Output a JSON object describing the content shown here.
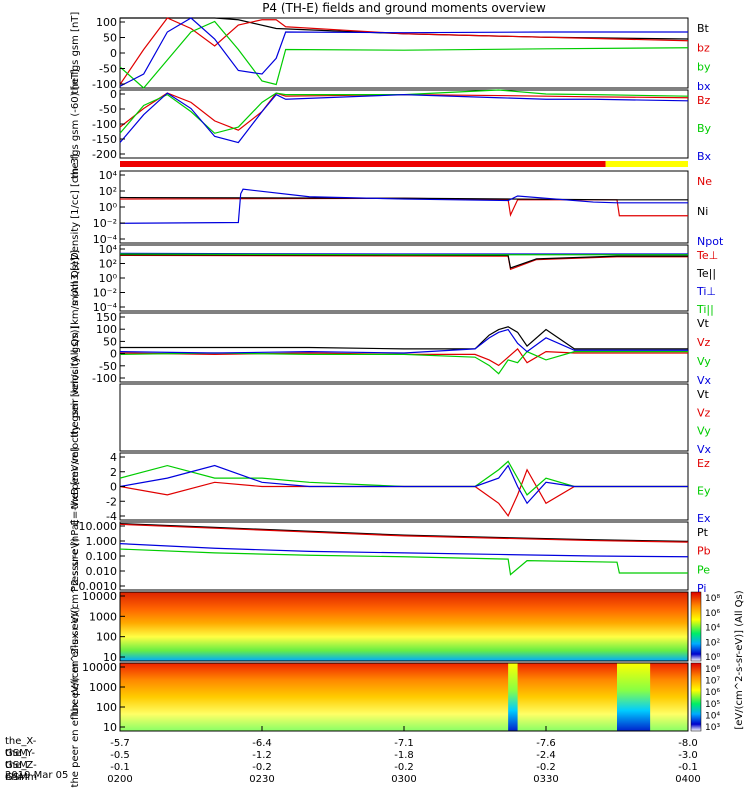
{
  "title": "P4 (TH-E) fields and ground moments overview",
  "date": "2019 Mar 05",
  "colors": {
    "black": "#000000",
    "red": "#e00000",
    "green": "#00cc00",
    "blue": "#0000dd"
  },
  "x_axis": {
    "rows": [
      {
        "label": "the_X-GSM",
        "ticks": [
          "-5.7",
          "-6.4",
          "-7.1",
          "-7.6",
          "-8.0"
        ]
      },
      {
        "label": "the_Y-GSM",
        "ticks": [
          "-0.5",
          "-1.2",
          "-1.8",
          "-2.4",
          "-3.0"
        ]
      },
      {
        "label": "the_Z-GSM",
        "ticks": [
          "-0.1",
          "-0.2",
          "-0.2",
          "-0.2",
          "-0.1"
        ]
      },
      {
        "label": "hhmm",
        "ticks": [
          "0200",
          "0230",
          "0300",
          "0330",
          "0400"
        ]
      }
    ]
  },
  "chart_data": [
    {
      "type": "line",
      "ylabel": "the fgs gsm [nT]",
      "ylim": [
        -100,
        100
      ],
      "yticks": [
        "100",
        "50",
        "0",
        "-50",
        "-100"
      ],
      "legend": [
        "Bt",
        "bz",
        "by",
        "bx"
      ],
      "series": [
        {
          "name": "Bt",
          "color": "black",
          "x": [
            0,
            5,
            10,
            20,
            25,
            33,
            60,
            90,
            120
          ],
          "values": [
            100,
            100,
            100,
            100,
            95,
            70,
            55,
            45,
            40
          ]
        },
        {
          "name": "bz",
          "color": "red",
          "x": [
            0,
            5,
            10,
            15,
            20,
            25,
            30,
            33,
            35,
            60,
            90,
            120
          ],
          "values": [
            -90,
            10,
            100,
            70,
            20,
            80,
            95,
            95,
            75,
            55,
            45,
            35
          ]
        },
        {
          "name": "by",
          "color": "green",
          "x": [
            0,
            5,
            10,
            15,
            20,
            25,
            30,
            33,
            35,
            60,
            90,
            120
          ],
          "values": [
            -40,
            -100,
            -20,
            60,
            90,
            10,
            -80,
            -90,
            10,
            8,
            12,
            15
          ]
        },
        {
          "name": "bx",
          "color": "blue",
          "x": [
            0,
            5,
            10,
            15,
            20,
            25,
            30,
            33,
            35,
            60,
            90,
            120
          ],
          "values": [
            -95,
            -60,
            60,
            100,
            40,
            -50,
            -60,
            -15,
            60,
            58,
            60,
            60
          ]
        }
      ]
    },
    {
      "type": "line",
      "ylabel": "the fgs gsm (-60) [nT]",
      "ylim": [
        -210,
        10
      ],
      "yticks": [
        "0",
        "-50",
        "-100",
        "-150",
        "-200"
      ],
      "legend": [
        "Bz",
        "By",
        "Bx"
      ],
      "series": [
        {
          "name": "Bz",
          "color": "red",
          "x": [
            0,
            5,
            10,
            15,
            20,
            25,
            30,
            33,
            35,
            60,
            80,
            90,
            100,
            120
          ],
          "values": [
            -110,
            -50,
            0,
            -30,
            -90,
            -120,
            -60,
            0,
            -10,
            -5,
            -8,
            -10,
            -12,
            -15
          ]
        },
        {
          "name": "By",
          "color": "green",
          "x": [
            0,
            5,
            10,
            15,
            20,
            25,
            30,
            33,
            35,
            60,
            80,
            90,
            100,
            120
          ],
          "values": [
            -130,
            -40,
            -5,
            -60,
            -130,
            -110,
            -30,
            0,
            -5,
            -5,
            10,
            -3,
            -5,
            -10
          ]
        },
        {
          "name": "Bx",
          "color": "blue",
          "x": [
            0,
            5,
            10,
            15,
            20,
            25,
            30,
            33,
            35,
            60,
            80,
            90,
            100,
            120
          ],
          "values": [
            -160,
            -70,
            0,
            -50,
            -140,
            -160,
            -60,
            -5,
            -20,
            -5,
            -15,
            -20,
            -20,
            -25
          ]
        }
      ]
    },
    {
      "type": "line",
      "ylabel": "Density [1/cc] [cm-3]",
      "yscale": "log",
      "ylim": [
        -5,
        4.5
      ],
      "yticks": [
        "10⁴",
        "10²",
        "10⁰",
        "10⁻²",
        "10⁻⁴"
      ],
      "legend": [
        "Ne",
        "Ni",
        "Npot"
      ],
      "series": [
        {
          "name": "Ne",
          "color": "red",
          "x": [
            0,
            60,
            82,
            82.5,
            84,
            105,
            105.5,
            112,
            120
          ],
          "values": [
            0.8,
            0.9,
            0.7,
            -1.3,
            0.7,
            0.7,
            -1.4,
            -1.4,
            -1.4
          ]
        },
        {
          "name": "Ni",
          "color": "black",
          "x": [
            0,
            60,
            84,
            105,
            106,
            120
          ],
          "values": [
            1.0,
            0.9,
            0.8,
            0.7,
            0.7,
            0.7
          ]
        },
        {
          "name": "Npot",
          "color": "blue",
          "x": [
            0,
            25,
            25.5,
            26,
            40,
            60,
            82,
            84,
            100,
            105,
            120
          ],
          "values": [
            -2.4,
            -2.3,
            1.5,
            2.1,
            1.1,
            0.8,
            0.6,
            1.2,
            0.4,
            0.3,
            0.3
          ]
        }
      ]
    },
    {
      "type": "line",
      "ylabel": "mom3 [eV]",
      "yscale": "log",
      "ylim": [
        -5,
        4.5
      ],
      "yticks": [
        "10⁴",
        "10²",
        "10⁰",
        "10⁻²",
        "10⁻⁴"
      ],
      "legend": [
        "Te⊥",
        "Te||",
        "Ti⊥",
        "Ti||"
      ],
      "series": [
        {
          "name": "Te⊥",
          "color": "red",
          "x": [
            0,
            82,
            82.5,
            88,
            105,
            120
          ],
          "values": [
            3.0,
            2.9,
            1.0,
            2.4,
            2.8,
            2.8
          ]
        },
        {
          "name": "Te||",
          "color": "black",
          "x": [
            0,
            82,
            82.5,
            88,
            105,
            120
          ],
          "values": [
            3.1,
            3.0,
            1.2,
            2.5,
            2.9,
            2.9
          ]
        },
        {
          "name": "Ti⊥",
          "color": "blue",
          "x": [
            0,
            60,
            105,
            120
          ],
          "values": [
            3.3,
            3.2,
            3.2,
            3.2
          ]
        },
        {
          "name": "Ti||",
          "color": "green",
          "x": [
            0,
            60,
            105,
            120
          ],
          "values": [
            3.2,
            3.1,
            3.1,
            3.1
          ]
        }
      ]
    },
    {
      "type": "line",
      "ylabel": "the peir velocity gsm [km/s (All Qs)]",
      "ylim": [
        -100,
        150
      ],
      "yticks": [
        "150",
        "100",
        "50",
        "0",
        "-50",
        "-100"
      ],
      "legend": [
        "Vt",
        "Vz",
        "Vy",
        "Vx"
      ],
      "series": [
        {
          "name": "Vt",
          "color": "black",
          "x": [
            0,
            20,
            40,
            60,
            75,
            78,
            80,
            82,
            84,
            86,
            90,
            96,
            120
          ],
          "values": [
            25,
            25,
            25,
            20,
            20,
            70,
            90,
            100,
            80,
            30,
            90,
            20,
            20
          ]
        },
        {
          "name": "Vz",
          "color": "red",
          "x": [
            0,
            20,
            40,
            60,
            75,
            78,
            80,
            82,
            84,
            86,
            90,
            96,
            120
          ],
          "values": [
            5,
            0,
            5,
            0,
            0,
            -20,
            -40,
            -10,
            20,
            -30,
            10,
            5,
            5
          ]
        },
        {
          "name": "Vy",
          "color": "green",
          "x": [
            0,
            20,
            40,
            60,
            75,
            78,
            80,
            82,
            84,
            86,
            90,
            96,
            120
          ],
          "values": [
            0,
            5,
            0,
            0,
            -10,
            -40,
            -70,
            -20,
            -30,
            10,
            -20,
            10,
            10
          ]
        },
        {
          "name": "Vx",
          "color": "blue",
          "x": [
            0,
            20,
            40,
            60,
            75,
            78,
            80,
            82,
            84,
            86,
            90,
            96,
            120
          ],
          "values": [
            10,
            5,
            10,
            5,
            20,
            60,
            80,
            90,
            40,
            10,
            60,
            15,
            15
          ]
        }
      ]
    },
    {
      "type": "line",
      "ylabel": "the peer velocity gsm [km/s (All Qs)]",
      "ylim": [
        -100,
        150
      ],
      "yticks": [],
      "legend": [
        "Vt",
        "Vz",
        "Vy",
        "Vx"
      ],
      "series": []
    },
    {
      "type": "line",
      "ylabel": "E=-VxB [mV/m]",
      "ylim": [
        -4,
        4
      ],
      "yticks": [
        "4",
        "2",
        "0",
        "-2",
        "-4"
      ],
      "legend": [
        "Ez",
        "Ey",
        "Ex"
      ],
      "series": [
        {
          "name": "Ez",
          "color": "red",
          "x": [
            0,
            10,
            20,
            30,
            40,
            60,
            75,
            80,
            82,
            84,
            86,
            90,
            96,
            120
          ],
          "values": [
            0,
            -1,
            0.5,
            0,
            0,
            0,
            0,
            -2,
            -3.5,
            -1,
            2,
            -2,
            0,
            0
          ]
        },
        {
          "name": "Ey",
          "color": "green",
          "x": [
            0,
            10,
            20,
            30,
            40,
            60,
            75,
            80,
            82,
            84,
            86,
            90,
            96,
            120
          ],
          "values": [
            1,
            2.5,
            1,
            1,
            0.5,
            0,
            0,
            2,
            3,
            1,
            -1,
            1,
            0,
            0
          ]
        },
        {
          "name": "Ex",
          "color": "blue",
          "x": [
            0,
            10,
            20,
            30,
            40,
            60,
            75,
            80,
            82,
            84,
            86,
            90,
            96,
            120
          ],
          "values": [
            0,
            1,
            2.5,
            0.5,
            0,
            0,
            0,
            1,
            2.5,
            0,
            -2,
            0.5,
            0,
            0
          ]
        }
      ]
    },
    {
      "type": "line",
      "ylabel": "Pressure [nPa]",
      "yscale": "log",
      "ylim": [
        -3.1,
        1.3
      ],
      "yticks": [
        "10.000",
        "1.000",
        "0.100",
        "0.010",
        "0.0010"
      ],
      "legend": [
        "Pt",
        "Pb",
        "Pe",
        "Pi"
      ],
      "series": [
        {
          "name": "Pt",
          "color": "black",
          "x": [
            0,
            20,
            40,
            60,
            80,
            100,
            120
          ],
          "values": [
            1.2,
            0.95,
            0.7,
            0.45,
            0.3,
            0.15,
            0.05
          ]
        },
        {
          "name": "Pb",
          "color": "red",
          "x": [
            0,
            20,
            40,
            60,
            80,
            100,
            120
          ],
          "values": [
            1.15,
            0.9,
            0.65,
            0.4,
            0.25,
            0.1,
            0.0
          ]
        },
        {
          "name": "Pe",
          "color": "green",
          "x": [
            0,
            20,
            40,
            60,
            82,
            82.5,
            86,
            105,
            105.5,
            120
          ],
          "values": [
            -0.45,
            -0.7,
            -0.85,
            -0.95,
            -1.1,
            -2.1,
            -1.2,
            -1.3,
            -2.0,
            -2.0
          ]
        },
        {
          "name": "Pi",
          "color": "blue",
          "x": [
            0,
            20,
            40,
            60,
            80,
            100,
            120
          ],
          "values": [
            -0.1,
            -0.4,
            -0.6,
            -0.7,
            -0.8,
            -0.9,
            -0.95
          ]
        }
      ]
    },
    {
      "type": "heatmap",
      "ylabel": "the peir en eflux eV/(cm^2-s-sr-eV)",
      "yscale": "log",
      "yticks": [
        "10000",
        "1000",
        "100",
        "10"
      ],
      "colorbar": {
        "label": "[eV/(cm^2-s-sr-eV)] (All Qs)",
        "ticks": [
          "10⁸",
          "10⁶",
          "10⁴",
          "10²",
          "10⁰"
        ]
      },
      "description_bands": [
        [
          4,
          "red"
        ],
        [
          3,
          "orange"
        ],
        [
          2,
          "yellow"
        ],
        [
          1,
          "green"
        ]
      ]
    },
    {
      "type": "heatmap",
      "ylabel": "the peer en eflux eV/(cm^2-s-sr-eV)",
      "yscale": "log",
      "yticks": [
        "10000",
        "1000",
        "100",
        "10"
      ],
      "colorbar": {
        "label": "[eV/(cm^2-s-sr-eV)]",
        "ticks": [
          "10⁸",
          "10⁷",
          "10⁶",
          "10⁵",
          "10⁴",
          "10³"
        ]
      },
      "gaps": [
        [
          82,
          84
        ],
        [
          105,
          112
        ]
      ]
    }
  ]
}
